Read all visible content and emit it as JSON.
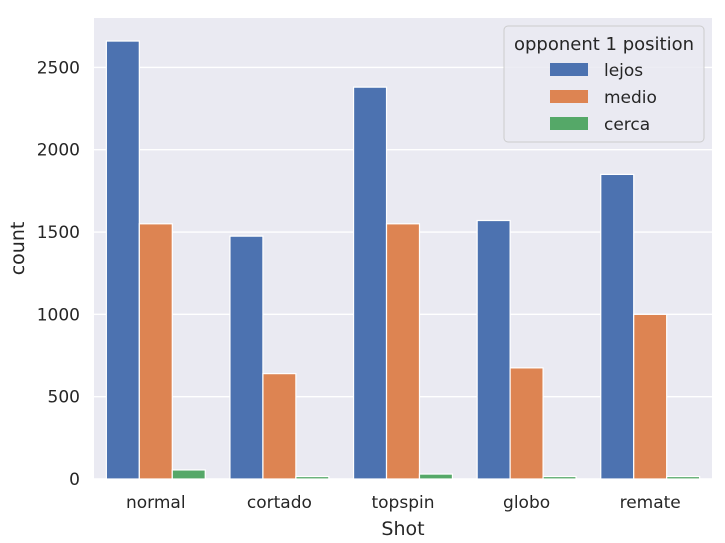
{
  "chart_data": {
    "type": "bar",
    "categories": [
      "normal",
      "cortado",
      "topspin",
      "globo",
      "remate"
    ],
    "series": [
      {
        "name": "lejos",
        "color": "#4c72b0",
        "values": [
          2660,
          1475,
          2380,
          1570,
          1850
        ]
      },
      {
        "name": "medio",
        "color": "#dd8452",
        "values": [
          1550,
          640,
          1550,
          675,
          1000
        ]
      },
      {
        "name": "cerca",
        "color": "#55a868",
        "values": [
          55,
          15,
          30,
          15,
          15
        ]
      }
    ],
    "xlabel": "Shot",
    "ylabel": "count",
    "ylim": [
      0,
      2800
    ],
    "yticks": [
      0,
      500,
      1000,
      1500,
      2000,
      2500
    ],
    "legend": {
      "title": "opponent 1 position",
      "placement": "top-right"
    },
    "grid": true,
    "background": "#eaeaf2"
  }
}
